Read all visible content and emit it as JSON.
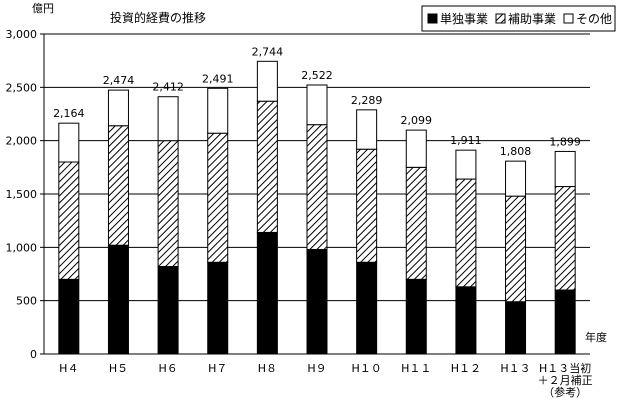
{
  "chart_data": {
    "type": "bar",
    "stacked": true,
    "title": "投資的経費の推移",
    "ylabel": "億円",
    "xlabel": "年度",
    "ylim": [
      0,
      3000
    ],
    "yticks": [
      "0",
      "500",
      "1,000",
      "1,500",
      "2,000",
      "2,500",
      "3,000"
    ],
    "grid": true,
    "legend_position": "top-right",
    "categories": [
      [
        "H４"
      ],
      [
        "H５"
      ],
      [
        "H６"
      ],
      [
        "H７"
      ],
      [
        "H８"
      ],
      [
        "H９"
      ],
      [
        "H１０"
      ],
      [
        "H１１"
      ],
      [
        "H１２"
      ],
      [
        "H１３"
      ],
      [
        "H１３当初",
        "＋２月補正",
        "（参考）"
      ]
    ],
    "totals": [
      2164,
      2474,
      2412,
      2491,
      2744,
      2522,
      2289,
      2099,
      1911,
      1808,
      1899
    ],
    "total_labels": [
      "2,164",
      "2,474",
      "2,412",
      "2,491",
      "2,744",
      "2,522",
      "2,289",
      "2,099",
      "1,911",
      "1,808",
      "1,899"
    ],
    "series": [
      {
        "name": "単独事業",
        "pattern": "solid",
        "color": "#000000",
        "values": [
          700,
          1020,
          820,
          860,
          1140,
          980,
          860,
          700,
          630,
          490,
          600
        ]
      },
      {
        "name": "補助事業",
        "pattern": "hatch",
        "color": "#000000",
        "values": [
          1100,
          1120,
          1180,
          1210,
          1230,
          1170,
          1060,
          1050,
          1010,
          990,
          970
        ]
      },
      {
        "name": "その他",
        "pattern": "white",
        "color": "#ffffff",
        "values": [
          364,
          334,
          412,
          421,
          374,
          372,
          369,
          349,
          271,
          328,
          329
        ]
      }
    ]
  }
}
